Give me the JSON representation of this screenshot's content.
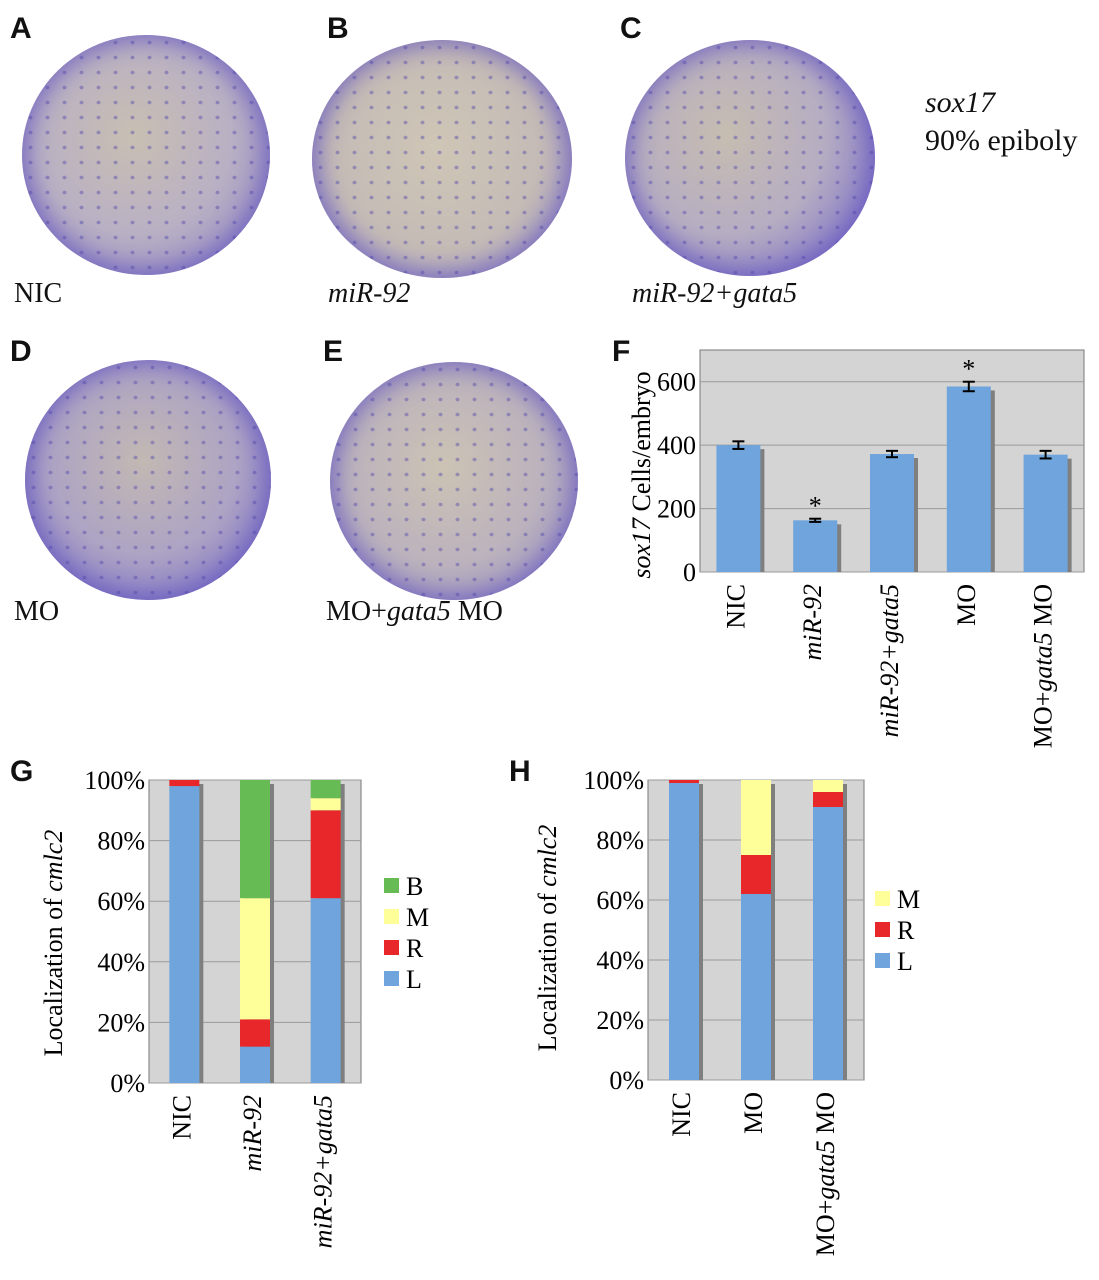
{
  "figure": {
    "annotation": {
      "gene": "sox17",
      "stage": "90% epiboly"
    },
    "image_panels": [
      {
        "letter": "A",
        "label": "NIC"
      },
      {
        "letter": "B",
        "label": "miR-92"
      },
      {
        "letter": "C",
        "label": "miR-92+gata5"
      },
      {
        "letter": "D",
        "label": "MO"
      },
      {
        "letter": "E",
        "label": "MO+gata5 MO"
      }
    ],
    "colors": {
      "bar_blue": "#6fa5dc",
      "L": "#6fa5dc",
      "R": "#e8272a",
      "M": "#ffff99",
      "B": "#66bb55",
      "plot_bg": "#d4d4d4",
      "grid": "#9a9a9a"
    }
  },
  "chart_data": [
    {
      "panel": "F",
      "type": "bar",
      "ylabel": "sox17 Cells/embryo",
      "ylim": [
        0,
        700
      ],
      "yticks": [
        "0",
        "200",
        "400",
        "600"
      ],
      "categories": [
        "NIC",
        "miR-92",
        "miR-92+gata5",
        "MO",
        "MO+gata5 MO"
      ],
      "values": [
        400,
        163,
        372,
        585,
        370
      ],
      "errors": [
        12,
        5,
        10,
        15,
        12
      ],
      "significance": [
        "",
        "*",
        "",
        "*",
        ""
      ],
      "grid": true
    },
    {
      "panel": "G",
      "type": "bar",
      "stacked": true,
      "ylabel": "Localization of cmlc2",
      "ylim": [
        0,
        100
      ],
      "yticks": [
        "0%",
        "20%",
        "40%",
        "60%",
        "80%",
        "100%"
      ],
      "categories": [
        "NIC",
        "miR-92",
        "miR-92+gata5"
      ],
      "series": [
        {
          "name": "L",
          "values": [
            98,
            12,
            61
          ]
        },
        {
          "name": "R",
          "values": [
            2,
            9,
            29
          ]
        },
        {
          "name": "M",
          "values": [
            0,
            40,
            4
          ]
        },
        {
          "name": "B",
          "values": [
            0,
            39,
            6
          ]
        }
      ],
      "legend": [
        "B",
        "M",
        "R",
        "L"
      ],
      "grid": true
    },
    {
      "panel": "H",
      "type": "bar",
      "stacked": true,
      "ylabel": "Localization of cmlc2",
      "ylim": [
        0,
        100
      ],
      "yticks": [
        "0%",
        "20%",
        "40%",
        "60%",
        "80%",
        "100%"
      ],
      "categories": [
        "NIC",
        "MO",
        "MO+gata5 MO"
      ],
      "series": [
        {
          "name": "L",
          "values": [
            99,
            62,
            91
          ]
        },
        {
          "name": "R",
          "values": [
            1,
            13,
            5
          ]
        },
        {
          "name": "M",
          "values": [
            0,
            25,
            4
          ]
        }
      ],
      "legend": [
        "M",
        "R",
        "L"
      ],
      "grid": true
    }
  ]
}
